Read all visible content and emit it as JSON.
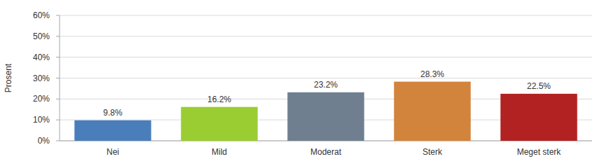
{
  "chart_data": {
    "type": "bar",
    "y_label": "Prosent",
    "categories": [
      "Nei",
      "Mild",
      "Moderat",
      "Sterk",
      "Meget sterk"
    ],
    "values": [
      9.8,
      16.2,
      23.2,
      28.3,
      22.5
    ],
    "value_labels": [
      "9.8%",
      "16.2%",
      "23.2%",
      "28.3%",
      "22.5%"
    ],
    "colors": [
      "#4a7ebb",
      "#9acd32",
      "#6f7f8f",
      "#d2843c",
      "#b22222"
    ],
    "ylim": [
      0,
      60
    ],
    "yticks": [
      {
        "value": 0,
        "label": "0%"
      },
      {
        "value": 10,
        "label": "10%"
      },
      {
        "value": 20,
        "label": "20%"
      },
      {
        "value": 30,
        "label": "30%"
      },
      {
        "value": 40,
        "label": "40%"
      },
      {
        "value": 50,
        "label": "50%"
      },
      {
        "value": 60,
        "label": "60%"
      }
    ],
    "grid": true,
    "data_labels": true
  }
}
